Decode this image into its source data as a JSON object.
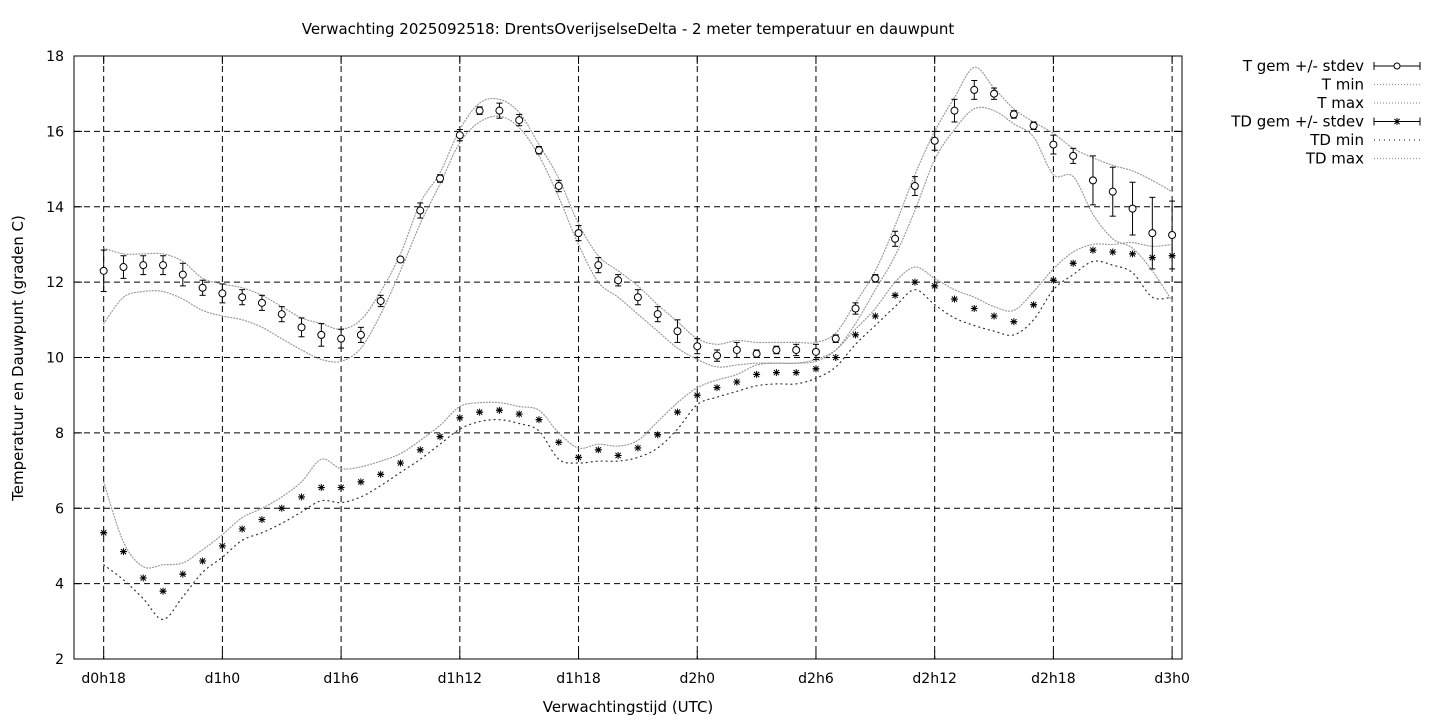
{
  "chart_data": {
    "type": "line",
    "title": "Verwachting 2025092518: DrentsOverijselseDelta - 2 meter temperatuur en dauwpunt",
    "xlabel": "Verwachtingstijd (UTC)",
    "ylabel": "Temperatuur en Dauwpunt (graden C)",
    "xlim": [
      -1.5,
      54.5
    ],
    "ylim": [
      2,
      18
    ],
    "x_unit": "hours since d0h18",
    "x_ticks": [
      {
        "x": 0,
        "label": "d0h18"
      },
      {
        "x": 6,
        "label": "d1h0"
      },
      {
        "x": 12,
        "label": "d1h6"
      },
      {
        "x": 18,
        "label": "d1h12"
      },
      {
        "x": 24,
        "label": "d1h18"
      },
      {
        "x": 30,
        "label": "d2h0"
      },
      {
        "x": 36,
        "label": "d2h6"
      },
      {
        "x": 42,
        "label": "d2h12"
      },
      {
        "x": 48,
        "label": "d2h18"
      },
      {
        "x": 54,
        "label": "d3h0"
      }
    ],
    "y_ticks": [
      "2",
      "4",
      "6",
      "8",
      "10",
      "12",
      "14",
      "16",
      "18"
    ],
    "grid": true,
    "legend_placement": "outside-right",
    "x": [
      0,
      1,
      2,
      3,
      4,
      5,
      6,
      7,
      8,
      9,
      10,
      11,
      12,
      13,
      14,
      15,
      16,
      17,
      18,
      19,
      20,
      21,
      22,
      23,
      24,
      25,
      26,
      27,
      28,
      29,
      30,
      31,
      32,
      33,
      34,
      35,
      36,
      37,
      38,
      39,
      40,
      41,
      42,
      43,
      44,
      45,
      46,
      47,
      48,
      49,
      50,
      51,
      52,
      53,
      54
    ],
    "series": [
      {
        "name": "T gem +/- stdev",
        "style": "errorbars-circle",
        "values": [
          12.3,
          12.4,
          12.45,
          12.45,
          12.2,
          11.85,
          11.7,
          11.6,
          11.45,
          11.15,
          10.8,
          10.6,
          10.5,
          10.6,
          11.5,
          12.6,
          13.9,
          14.75,
          15.9,
          16.55,
          16.55,
          16.3,
          15.5,
          14.55,
          13.3,
          12.45,
          12.05,
          11.6,
          11.15,
          10.7,
          10.3,
          10.05,
          10.2,
          10.1,
          10.2,
          10.2,
          10.15,
          10.5,
          11.3,
          12.1,
          13.15,
          14.55,
          15.75,
          16.55,
          17.1,
          17.0,
          16.45,
          16.15,
          15.65,
          15.35,
          14.7,
          14.4,
          13.95,
          13.3,
          13.25
        ],
        "stdev": [
          0.55,
          0.3,
          0.25,
          0.25,
          0.3,
          0.2,
          0.25,
          0.2,
          0.2,
          0.2,
          0.25,
          0.3,
          0.25,
          0.2,
          0.15,
          0.05,
          0.2,
          0.1,
          0.15,
          0.1,
          0.2,
          0.15,
          0.1,
          0.15,
          0.2,
          0.2,
          0.15,
          0.2,
          0.2,
          0.3,
          0.2,
          0.15,
          0.2,
          0.1,
          0.1,
          0.15,
          0.2,
          0.1,
          0.15,
          0.1,
          0.2,
          0.25,
          0.25,
          0.3,
          0.25,
          0.15,
          0.1,
          0.1,
          0.25,
          0.2,
          0.65,
          0.65,
          0.7,
          0.95,
          0.9
        ]
      },
      {
        "name": "T min",
        "style": "dotted",
        "values": [
          10.9,
          11.6,
          11.75,
          11.75,
          11.55,
          11.25,
          11.1,
          11.0,
          10.8,
          10.5,
          10.2,
          9.95,
          9.9,
          10.25,
          11.15,
          12.3,
          13.55,
          14.6,
          15.7,
          16.25,
          16.4,
          16.1,
          15.35,
          14.25,
          13.0,
          12.0,
          11.6,
          11.15,
          10.7,
          10.25,
          9.95,
          9.75,
          9.8,
          9.85,
          9.85,
          9.85,
          9.9,
          10.2,
          10.9,
          11.8,
          12.7,
          13.9,
          15.25,
          16.05,
          16.6,
          16.55,
          16.2,
          15.85,
          14.85,
          14.8,
          13.8,
          13.15,
          12.9,
          12.3,
          11.5
        ]
      },
      {
        "name": "T max",
        "style": "dotted",
        "values": [
          12.9,
          12.75,
          12.75,
          12.75,
          12.55,
          12.1,
          11.95,
          11.85,
          11.65,
          11.35,
          11.05,
          10.9,
          10.75,
          11.0,
          11.75,
          12.75,
          14.1,
          14.9,
          16.05,
          16.75,
          16.85,
          16.5,
          15.65,
          14.75,
          13.55,
          12.7,
          12.3,
          11.9,
          11.4,
          10.95,
          10.5,
          10.35,
          10.45,
          10.4,
          10.4,
          10.4,
          10.4,
          10.65,
          11.45,
          12.3,
          13.5,
          14.85,
          16.0,
          16.9,
          17.7,
          17.15,
          16.6,
          16.25,
          15.95,
          15.55,
          15.3,
          15.1,
          14.95,
          14.7,
          14.4
        ]
      },
      {
        "name": "TD gem +/- stdev",
        "style": "errorbars-star",
        "values": [
          5.35,
          4.85,
          4.15,
          3.8,
          4.25,
          4.6,
          5.0,
          5.45,
          5.7,
          6.0,
          6.3,
          6.55,
          6.55,
          6.7,
          6.9,
          7.2,
          7.55,
          7.9,
          8.4,
          8.55,
          8.6,
          8.5,
          8.35,
          7.75,
          7.35,
          7.55,
          7.4,
          7.6,
          7.95,
          8.55,
          9.0,
          9.2,
          9.35,
          9.55,
          9.6,
          9.6,
          9.7,
          10.0,
          10.6,
          11.1,
          11.65,
          12.0,
          11.9,
          11.55,
          11.3,
          11.1,
          10.95,
          11.4,
          12.05,
          12.5,
          12.85,
          12.8,
          12.75,
          12.65,
          12.7
        ]
      },
      {
        "name": "TD min",
        "style": "dotted",
        "values": [
          4.5,
          4.1,
          3.6,
          3.05,
          3.65,
          4.3,
          4.7,
          5.15,
          5.35,
          5.6,
          5.9,
          6.2,
          6.15,
          6.3,
          6.6,
          6.95,
          7.3,
          7.7,
          8.1,
          8.3,
          8.35,
          8.25,
          8.05,
          7.3,
          7.2,
          7.25,
          7.25,
          7.35,
          7.6,
          8.1,
          8.75,
          8.95,
          9.1,
          9.25,
          9.3,
          9.3,
          9.45,
          9.75,
          10.35,
          10.85,
          11.35,
          11.8,
          11.4,
          11.05,
          10.85,
          10.7,
          10.6,
          11.0,
          11.8,
          12.2,
          12.55,
          12.45,
          12.25,
          11.6,
          11.6
        ]
      },
      {
        "name": "TD max",
        "style": "dotted",
        "values": [
          6.7,
          5.1,
          4.45,
          4.5,
          4.55,
          4.9,
          5.3,
          5.75,
          6.0,
          6.3,
          6.7,
          7.3,
          7.05,
          7.1,
          7.25,
          7.45,
          7.8,
          8.2,
          8.7,
          8.8,
          8.8,
          8.7,
          8.6,
          8.0,
          7.6,
          7.7,
          7.65,
          7.8,
          8.3,
          8.8,
          9.2,
          9.4,
          9.55,
          9.8,
          9.85,
          9.85,
          9.95,
          10.2,
          10.75,
          11.3,
          12.0,
          12.4,
          12.1,
          11.8,
          11.6,
          11.35,
          11.25,
          11.75,
          12.35,
          12.8,
          13.0,
          13.0,
          13.05,
          12.95,
          13.0
        ]
      }
    ]
  }
}
